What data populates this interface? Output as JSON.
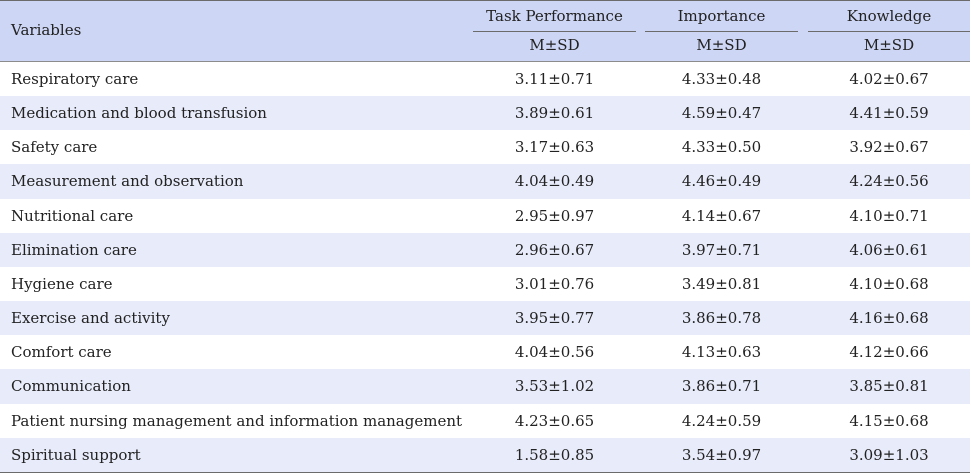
{
  "table": {
    "header": {
      "variables_label": "Variables",
      "groups": [
        {
          "name": "Task Performance",
          "sub": "M±SD"
        },
        {
          "name": "Importance",
          "sub": "M±SD"
        },
        {
          "name": "Knowledge",
          "sub": "M±SD"
        }
      ]
    },
    "rows": [
      {
        "variable": "Respiratory care",
        "task": "3.11±0.71",
        "importance": "4.33±0.48",
        "knowledge": "4.02±0.67"
      },
      {
        "variable": "Medication and blood transfusion",
        "task": "3.89±0.61",
        "importance": "4.59±0.47",
        "knowledge": "4.41±0.59"
      },
      {
        "variable": "Safety care",
        "task": "3.17±0.63",
        "importance": "4.33±0.50",
        "knowledge": "3.92±0.67"
      },
      {
        "variable": "Measurement and observation",
        "task": "4.04±0.49",
        "importance": "4.46±0.49",
        "knowledge": "4.24±0.56"
      },
      {
        "variable": "Nutritional care",
        "task": "2.95±0.97",
        "importance": "4.14±0.67",
        "knowledge": "4.10±0.71"
      },
      {
        "variable": "Elimination care",
        "task": "2.96±0.67",
        "importance": "3.97±0.71",
        "knowledge": "4.06±0.61"
      },
      {
        "variable": "Hygiene care",
        "task": "3.01±0.76",
        "importance": "3.49±0.81",
        "knowledge": "4.10±0.68"
      },
      {
        "variable": "Exercise and activity",
        "task": "3.95±0.77",
        "importance": "3.86±0.78",
        "knowledge": "4.16±0.68"
      },
      {
        "variable": "Comfort care",
        "task": "4.04±0.56",
        "importance": "4.13±0.63",
        "knowledge": "4.12±0.66"
      },
      {
        "variable": "Communication",
        "task": "3.53±1.02",
        "importance": "3.86±0.71",
        "knowledge": "3.85±0.81"
      },
      {
        "variable": "Patient nursing management and information management",
        "task": "4.23±0.65",
        "importance": "4.24±0.59",
        "knowledge": "4.15±0.68"
      },
      {
        "variable": "Spiritual support",
        "task": "1.58±0.85",
        "importance": "3.54±0.97",
        "knowledge": "3.09±1.03"
      }
    ]
  }
}
